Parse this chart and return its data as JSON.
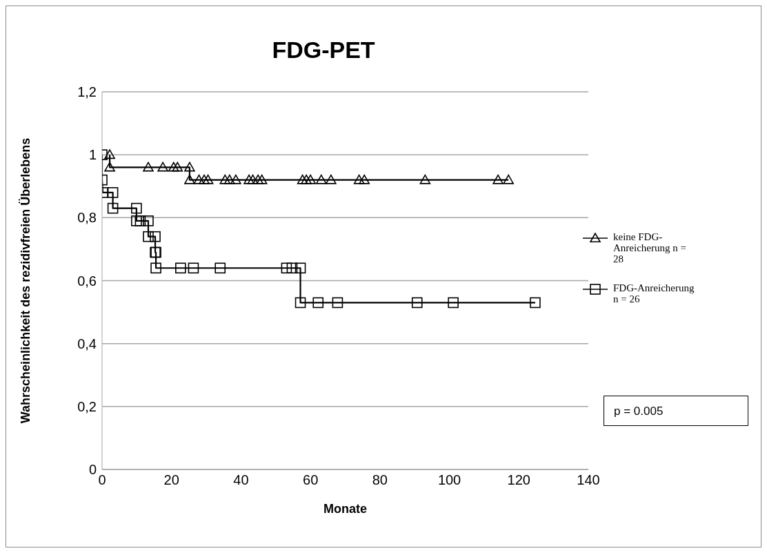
{
  "chart_data": {
    "type": "line",
    "title": "FDG-PET",
    "xlabel": "Monate",
    "ylabel": "Wahrscheinlichkeit des rezidivfreien Überlebens",
    "xlim": [
      0,
      140
    ],
    "xticks": [
      0,
      20,
      40,
      60,
      80,
      100,
      120,
      140
    ],
    "ylim": [
      0,
      1.2
    ],
    "yticks": [
      {
        "value": 0,
        "label": "0"
      },
      {
        "value": 0.2,
        "label": "0,2"
      },
      {
        "value": 0.4,
        "label": "0,4"
      },
      {
        "value": 0.6,
        "label": "0,6"
      },
      {
        "value": 0.8,
        "label": "0,8"
      },
      {
        "value": 1,
        "label": "1"
      },
      {
        "value": 1.2,
        "label": "1,2"
      }
    ],
    "grid": "y",
    "legend": "right",
    "line_style": "solid",
    "series": [
      {
        "name": "keine FDG-Anreicherung n = 28",
        "color": "#000000",
        "marker": "triangle",
        "x": [
          2.2,
          2.2,
          13.3,
          17.5,
          20.6,
          21.7,
          25.2,
          25.2,
          27.9,
          29.4,
          30.5,
          35.4,
          36.7,
          38.5,
          42.3,
          43.4,
          44.9,
          46,
          57.7,
          58.8,
          60,
          63.1,
          65.9,
          74,
          75.5,
          93,
          114,
          117
        ],
        "values": [
          1,
          0.96,
          0.96,
          0.96,
          0.96,
          0.96,
          0.96,
          0.92,
          0.92,
          0.92,
          0.92,
          0.92,
          0.92,
          0.92,
          0.92,
          0.92,
          0.92,
          0.92,
          0.92,
          0.92,
          0.92,
          0.92,
          0.92,
          0.92,
          0.92,
          0.92,
          0.92,
          0.92
        ]
      },
      {
        "name": "FDG-Anreicherung n = 26",
        "color": "#000000",
        "marker": "square",
        "x": [
          0,
          0,
          0.2,
          3.1,
          3.1,
          9.9,
          9.9,
          11,
          13.3,
          13.3,
          15.3,
          15.3,
          15.5,
          15.5,
          22.6,
          26.3,
          34,
          53.1,
          54.7,
          57.1,
          57.1,
          62.2,
          67.8,
          90.7,
          101.1,
          124.7
        ],
        "values": [
          1,
          0.92,
          0.88,
          0.88,
          0.83,
          0.83,
          0.79,
          0.79,
          0.79,
          0.74,
          0.74,
          0.69,
          0.69,
          0.64,
          0.64,
          0.64,
          0.64,
          0.64,
          0.64,
          0.64,
          0.53,
          0.53,
          0.53,
          0.53,
          0.53,
          0.53
        ]
      }
    ],
    "annotations": [
      "p = 0.005"
    ]
  }
}
